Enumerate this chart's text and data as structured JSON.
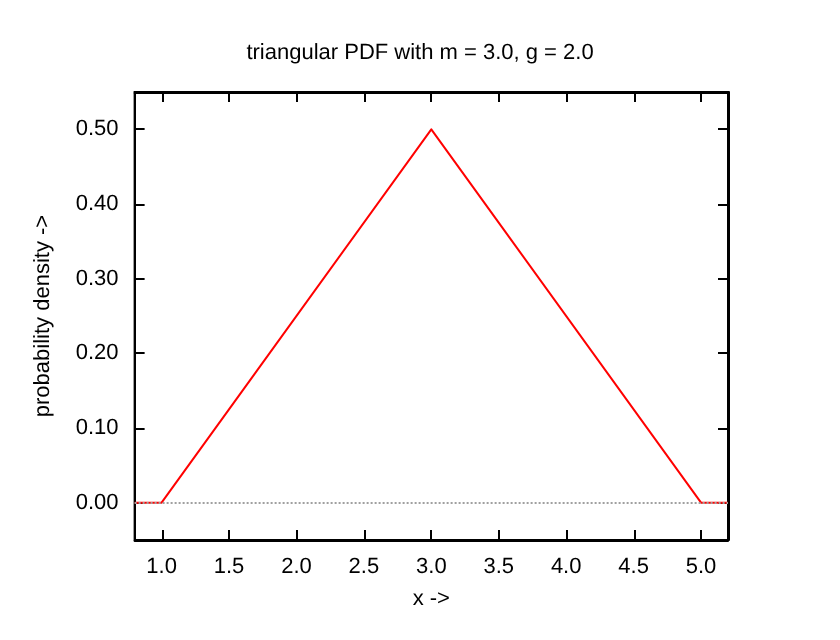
{
  "chart_data": {
    "type": "line",
    "title": "triangular PDF with m = 3.0, g = 2.0",
    "xlabel": "x ->",
    "ylabel": "probability density ->",
    "x": [
      0.8,
      1.0,
      3.0,
      5.0,
      5.2
    ],
    "series": [
      {
        "color": "#ff0000",
        "values": [
          0,
          0,
          0.5,
          0,
          0
        ]
      }
    ],
    "xlim": [
      0.8,
      5.2
    ],
    "xticks": [
      {
        "value": 1,
        "label": "1.0"
      },
      {
        "value": 1.5,
        "label": "1.5"
      },
      {
        "value": 2,
        "label": "2.0"
      },
      {
        "value": 2.5,
        "label": "2.5"
      },
      {
        "value": 3,
        "label": "3.0"
      },
      {
        "value": 3.5,
        "label": "3.5"
      },
      {
        "value": 4,
        "label": "4.0"
      },
      {
        "value": 4.5,
        "label": "4.5"
      },
      {
        "value": 5,
        "label": "5.0"
      }
    ],
    "ylim": [
      -0.05,
      0.55
    ],
    "yticks": [
      {
        "value": 0,
        "label": "0.00"
      },
      {
        "value": 0.1,
        "label": "0.10"
      },
      {
        "value": 0.2,
        "label": "0.20"
      },
      {
        "value": 0.3,
        "label": "0.30"
      },
      {
        "value": 0.4,
        "label": "0.40"
      },
      {
        "value": 0.5,
        "label": "0.50"
      }
    ],
    "ref_lines": [
      {
        "axis": "y",
        "value": 0,
        "color": "#a0a0a0",
        "line_style": "dotted"
      }
    ],
    "grid": false,
    "marker": "none",
    "line_style": "solid"
  }
}
